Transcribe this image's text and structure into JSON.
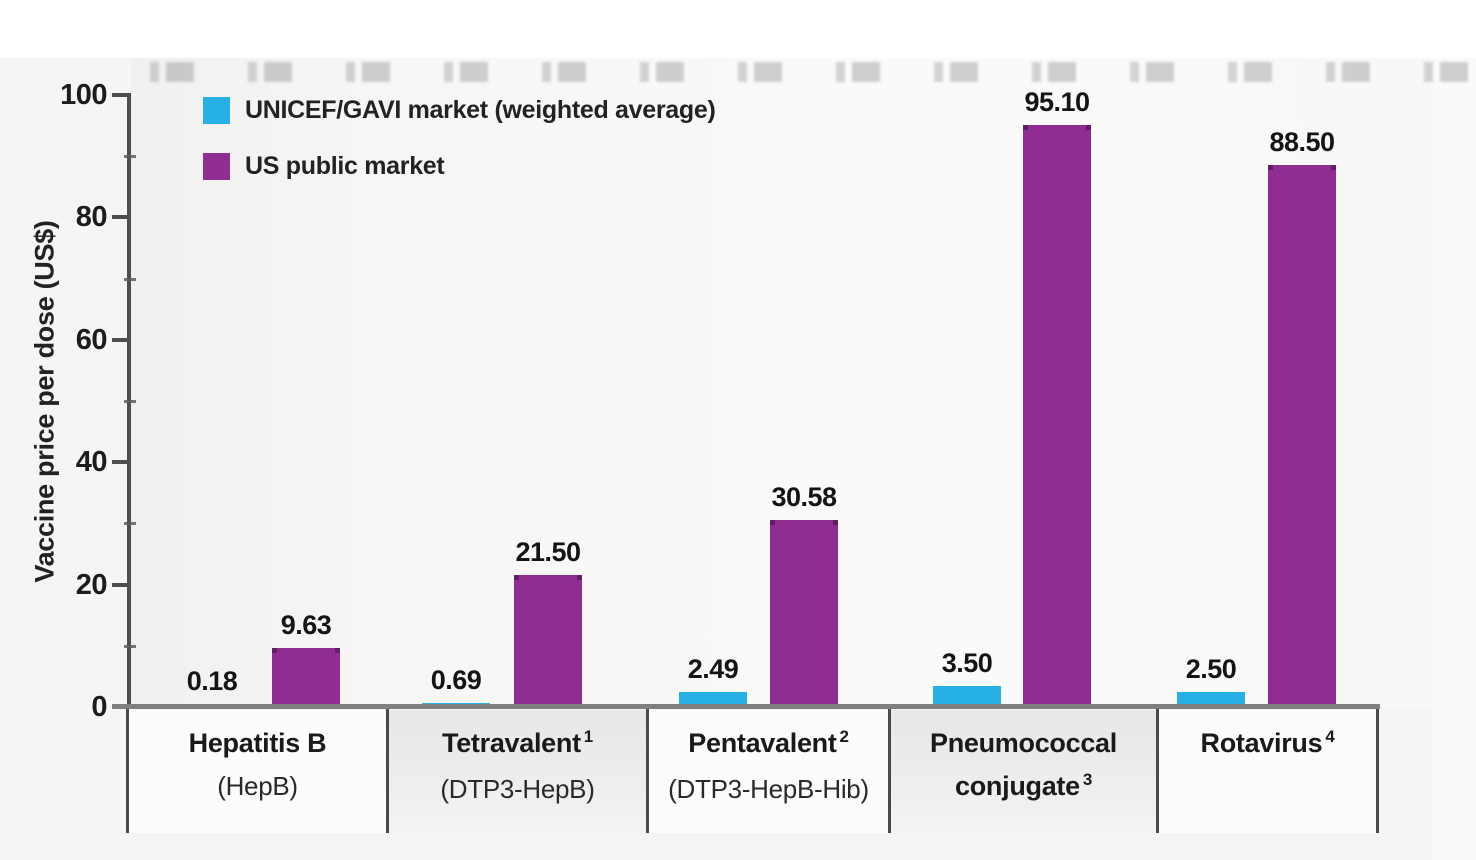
{
  "chart_data": {
    "type": "bar",
    "title": "",
    "ylabel": "Vaccine price per dose (US$)",
    "xlabel": "",
    "ylim": [
      0,
      100
    ],
    "yticks_major": [
      0,
      20,
      40,
      60,
      80,
      100
    ],
    "yticks_minor": [
      10,
      30,
      50,
      70,
      90
    ],
    "grid": false,
    "legend_position": "top-left",
    "categories": [
      {
        "lines": [
          {
            "text": "Hepatitis B",
            "sup": "",
            "kind": "main"
          },
          {
            "text": "(HepB)",
            "sup": "",
            "kind": "sub"
          }
        ]
      },
      {
        "lines": [
          {
            "text": "Tetravalent",
            "sup": "1",
            "kind": "main"
          },
          {
            "text": "(DTP3-HepB)",
            "sup": "",
            "kind": "sub"
          }
        ]
      },
      {
        "lines": [
          {
            "text": "Pentavalent",
            "sup": "2",
            "kind": "main"
          },
          {
            "text": "(DTP3-HepB-Hib)",
            "sup": "",
            "kind": "sub"
          }
        ]
      },
      {
        "lines": [
          {
            "text": "Pneumococcal",
            "sup": "",
            "kind": "main"
          },
          {
            "text": "conjugate",
            "sup": "3",
            "kind": "main"
          }
        ]
      },
      {
        "lines": [
          {
            "text": "Rotavirus",
            "sup": "4",
            "kind": "main"
          }
        ]
      }
    ],
    "series": [
      {
        "name": "UNICEF/GAVI market (weighted average)",
        "color": "#27b0e5",
        "values": [
          0.18,
          0.69,
          2.49,
          3.5,
          2.5
        ],
        "labels": [
          "0.18",
          "0.69",
          "2.49",
          "3.50",
          "2.50"
        ]
      },
      {
        "name": "US public market",
        "color": "#902d92",
        "values": [
          9.63,
          21.5,
          30.58,
          95.1,
          88.5
        ],
        "labels": [
          "9.63",
          "21.50",
          "30.58",
          "95.10",
          "88.50"
        ]
      }
    ],
    "colors": {
      "axis": "#4e4e4e",
      "baseline": "#7f7f7f",
      "text": "#1c1c1c",
      "cell_shaded": "#e9e9e7",
      "cell_plain": "#fcfcfb",
      "unicef_bar": "#27b0e5",
      "us_bar": "#902d92"
    }
  }
}
